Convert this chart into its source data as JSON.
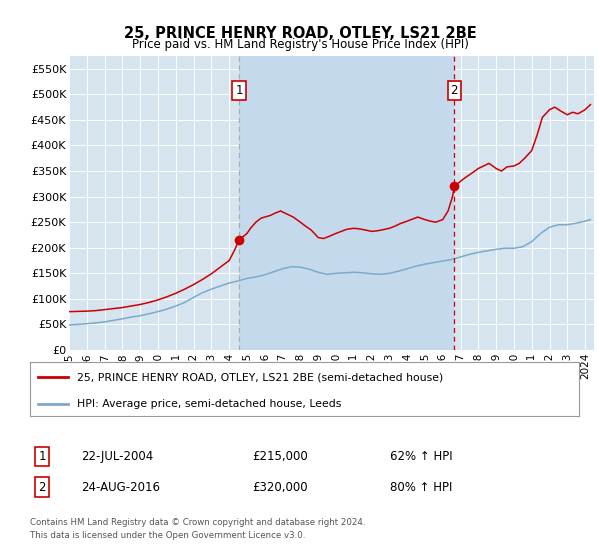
{
  "title": "25, PRINCE HENRY ROAD, OTLEY, LS21 2BE",
  "subtitle": "Price paid vs. HM Land Registry's House Price Index (HPI)",
  "ylim": [
    0,
    575000
  ],
  "yticks": [
    0,
    50000,
    100000,
    150000,
    200000,
    250000,
    300000,
    350000,
    400000,
    450000,
    500000,
    550000
  ],
  "ytick_labels": [
    "£0",
    "£50K",
    "£100K",
    "£150K",
    "£200K",
    "£250K",
    "£300K",
    "£350K",
    "£400K",
    "£450K",
    "£500K",
    "£550K"
  ],
  "bg_color": "#d6e4f0",
  "shade_color": "#c5d9ed",
  "line1_color": "#cc0000",
  "line2_color": "#7aaacc",
  "vline1_color": "#aaaaaa",
  "vline2_color": "#cc0000",
  "legend1": "25, PRINCE HENRY ROAD, OTLEY, LS21 2BE (semi-detached house)",
  "legend2": "HPI: Average price, semi-detached house, Leeds",
  "sale1_label": "1",
  "sale1_date": "22-JUL-2004",
  "sale1_price": "£215,000",
  "sale1_info": "62% ↑ HPI",
  "sale1_year": 2004.55,
  "sale1_value": 215000,
  "sale2_label": "2",
  "sale2_date": "24-AUG-2016",
  "sale2_price": "£320,000",
  "sale2_info": "80% ↑ HPI",
  "sale2_year": 2016.65,
  "sale2_value": 320000,
  "footer": "Contains HM Land Registry data © Crown copyright and database right 2024.\nThis data is licensed under the Open Government Licence v3.0.",
  "xmin": 1995.0,
  "xmax": 2024.5,
  "hpi_years": [
    1995,
    1995.5,
    1996,
    1996.5,
    1997,
    1997.5,
    1998,
    1998.5,
    1999,
    1999.5,
    2000,
    2000.5,
    2001,
    2001.5,
    2002,
    2002.5,
    2003,
    2003.5,
    2004,
    2004.5,
    2005,
    2005.5,
    2006,
    2006.5,
    2007,
    2007.5,
    2008,
    2008.5,
    2009,
    2009.5,
    2010,
    2010.5,
    2011,
    2011.5,
    2012,
    2012.5,
    2013,
    2013.5,
    2014,
    2014.5,
    2015,
    2015.5,
    2016,
    2016.5,
    2017,
    2017.5,
    2018,
    2018.5,
    2019,
    2019.5,
    2020,
    2020.5,
    2021,
    2021.5,
    2022,
    2022.5,
    2023,
    2023.5,
    2024,
    2024.3
  ],
  "hpi_vals": [
    49000,
    50000,
    51500,
    53000,
    55000,
    58000,
    61000,
    64500,
    67000,
    71000,
    75000,
    80000,
    86000,
    93000,
    103000,
    112000,
    119000,
    125000,
    131000,
    135000,
    140000,
    143000,
    147000,
    153000,
    159000,
    163000,
    162000,
    158000,
    152000,
    148000,
    150000,
    151000,
    152000,
    151000,
    149000,
    148000,
    150000,
    154000,
    159000,
    164000,
    168000,
    171000,
    174000,
    177000,
    182000,
    187000,
    191000,
    194000,
    197000,
    199000,
    199000,
    202000,
    212000,
    228000,
    240000,
    245000,
    245000,
    248000,
    252000,
    255000
  ],
  "red_years": [
    1995,
    1995.5,
    1996,
    1996.5,
    1997,
    1997.5,
    1998,
    1998.5,
    1999,
    1999.5,
    2000,
    2000.5,
    2001,
    2001.5,
    2002,
    2002.5,
    2003,
    2003.5,
    2004,
    2004.3,
    2004.55,
    2005,
    2005.2,
    2005.5,
    2005.8,
    2006,
    2006.3,
    2006.6,
    2006.9,
    2007,
    2007.3,
    2007.6,
    2008,
    2008.3,
    2008.6,
    2009,
    2009.3,
    2009.6,
    2010,
    2010.3,
    2010.6,
    2011,
    2011.3,
    2011.6,
    2012,
    2012.3,
    2012.6,
    2013,
    2013.3,
    2013.6,
    2014,
    2014.3,
    2014.6,
    2015,
    2015.3,
    2015.6,
    2016,
    2016.3,
    2016.55,
    2016.65,
    2017,
    2017.3,
    2017.6,
    2018,
    2018.3,
    2018.6,
    2019,
    2019.3,
    2019.6,
    2020,
    2020.3,
    2020.6,
    2021,
    2021.3,
    2021.6,
    2022,
    2022.3,
    2022.6,
    2023,
    2023.3,
    2023.6,
    2024,
    2024.3
  ],
  "red_vals": [
    75000,
    75500,
    76000,
    77000,
    79000,
    81000,
    83000,
    86000,
    89000,
    93000,
    98000,
    104000,
    111000,
    119000,
    128000,
    138000,
    149000,
    162000,
    175000,
    195000,
    215000,
    228000,
    238000,
    250000,
    258000,
    260000,
    263000,
    268000,
    272000,
    270000,
    265000,
    260000,
    250000,
    242000,
    235000,
    220000,
    218000,
    222000,
    228000,
    232000,
    236000,
    238000,
    237000,
    235000,
    232000,
    233000,
    235000,
    238000,
    242000,
    247000,
    252000,
    256000,
    260000,
    255000,
    252000,
    250000,
    255000,
    272000,
    300000,
    320000,
    330000,
    338000,
    345000,
    355000,
    360000,
    365000,
    355000,
    350000,
    358000,
    360000,
    365000,
    375000,
    390000,
    420000,
    455000,
    470000,
    475000,
    468000,
    460000,
    465000,
    462000,
    470000,
    480000
  ]
}
